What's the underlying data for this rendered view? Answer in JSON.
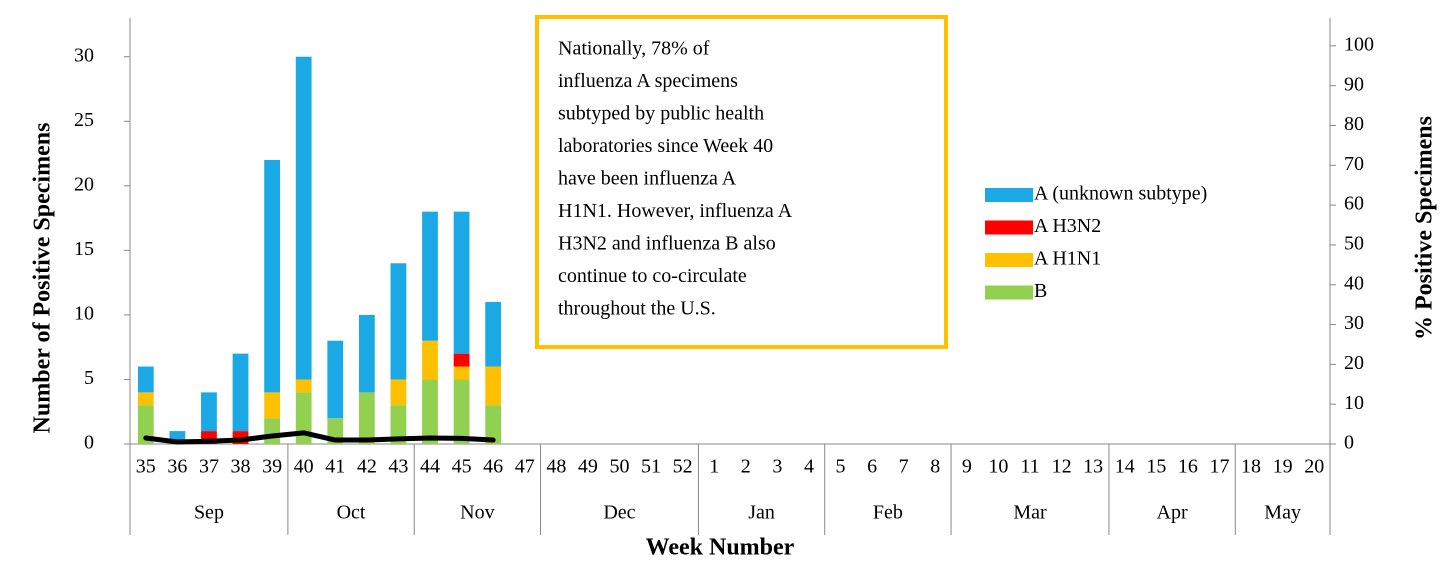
{
  "chart_data": {
    "type": "bar",
    "stacked": true,
    "x_label": "Week Number",
    "y_label": "Number of Positive Specimens",
    "y2_label": "% Positive Specimens",
    "categories": [
      "35",
      "36",
      "37",
      "38",
      "39",
      "40",
      "41",
      "42",
      "43",
      "44",
      "45",
      "46",
      "47",
      "48",
      "49",
      "50",
      "51",
      "52",
      "1",
      "2",
      "3",
      "4",
      "5",
      "6",
      "7",
      "8",
      "9",
      "10",
      "11",
      "12",
      "13",
      "14",
      "15",
      "16",
      "17",
      "18",
      "19",
      "20"
    ],
    "months": [
      "Sep",
      "Sep",
      "Sep",
      "Sep",
      "Sep",
      "Oct",
      "Oct",
      "Oct",
      "Oct",
      "Nov",
      "Nov",
      "Nov",
      "Nov",
      "Dec",
      "Dec",
      "Dec",
      "Dec",
      "Dec",
      "Jan",
      "Jan",
      "Jan",
      "Jan",
      "Feb",
      "Feb",
      "Feb",
      "Feb",
      "Mar",
      "Mar",
      "Mar",
      "Mar",
      "Mar",
      "Apr",
      "Apr",
      "Apr",
      "Apr",
      "May",
      "May",
      "May"
    ],
    "series": [
      {
        "name": "B",
        "color": "#92d050",
        "values": [
          3,
          0,
          0,
          0,
          2,
          4,
          2,
          4,
          3,
          5,
          5,
          3,
          null,
          null,
          null,
          null,
          null,
          null,
          null,
          null,
          null,
          null,
          null,
          null,
          null,
          null,
          null,
          null,
          null,
          null,
          null,
          null,
          null,
          null,
          null,
          null,
          null,
          null
        ]
      },
      {
        "name": "A H1N1",
        "color": "#ffc000",
        "values": [
          1,
          0,
          0,
          0,
          2,
          1,
          0,
          0,
          2,
          3,
          1,
          3,
          null,
          null,
          null,
          null,
          null,
          null,
          null,
          null,
          null,
          null,
          null,
          null,
          null,
          null,
          null,
          null,
          null,
          null,
          null,
          null,
          null,
          null,
          null,
          null,
          null,
          null
        ]
      },
      {
        "name": "A H3N2",
        "color": "#ff0000",
        "values": [
          0,
          0,
          1,
          1,
          0,
          0,
          0,
          0,
          0,
          0,
          1,
          0,
          null,
          null,
          null,
          null,
          null,
          null,
          null,
          null,
          null,
          null,
          null,
          null,
          null,
          null,
          null,
          null,
          null,
          null,
          null,
          null,
          null,
          null,
          null,
          null,
          null,
          null
        ]
      },
      {
        "name": "A (unknown subtype)",
        "color": "#1ba9e6",
        "values": [
          2,
          1,
          3,
          6,
          18,
          25,
          6,
          6,
          9,
          10,
          11,
          5,
          null,
          null,
          null,
          null,
          null,
          null,
          null,
          null,
          null,
          null,
          null,
          null,
          null,
          null,
          null,
          null,
          null,
          null,
          null,
          null,
          null,
          null,
          null,
          null,
          null,
          null
        ]
      },
      {
        "type": "line",
        "axis": "y2",
        "color": "#000000",
        "values": [
          1.5,
          0.5,
          0.7,
          1,
          2,
          2.8,
          1,
          1,
          1.3,
          1.5,
          1.4,
          1,
          null,
          null,
          null,
          null,
          null,
          null,
          null,
          null,
          null,
          null,
          null,
          null,
          null,
          null,
          null,
          null,
          null,
          null,
          null,
          null,
          null,
          null,
          null,
          null,
          null,
          null
        ]
      }
    ],
    "ylim": [
      0,
      33
    ],
    "yticks": [
      0,
      5,
      10,
      15,
      20,
      25,
      30
    ],
    "y2lim": [
      0,
      107
    ],
    "y2ticks": [
      0,
      10,
      20,
      30,
      40,
      50,
      60,
      70,
      80,
      90,
      100
    ],
    "legend": "right",
    "annotation": [
      "Nationally, 78% of",
      "influenza A specimens",
      "subtyped by public health",
      "laboratories since Week 40",
      "have been influenza A",
      "H1N1. However, influenza A",
      "H3N2 and influenza B also",
      "continue to co-circulate",
      "throughout the U.S."
    ],
    "annotation_border": "#ffc000"
  }
}
